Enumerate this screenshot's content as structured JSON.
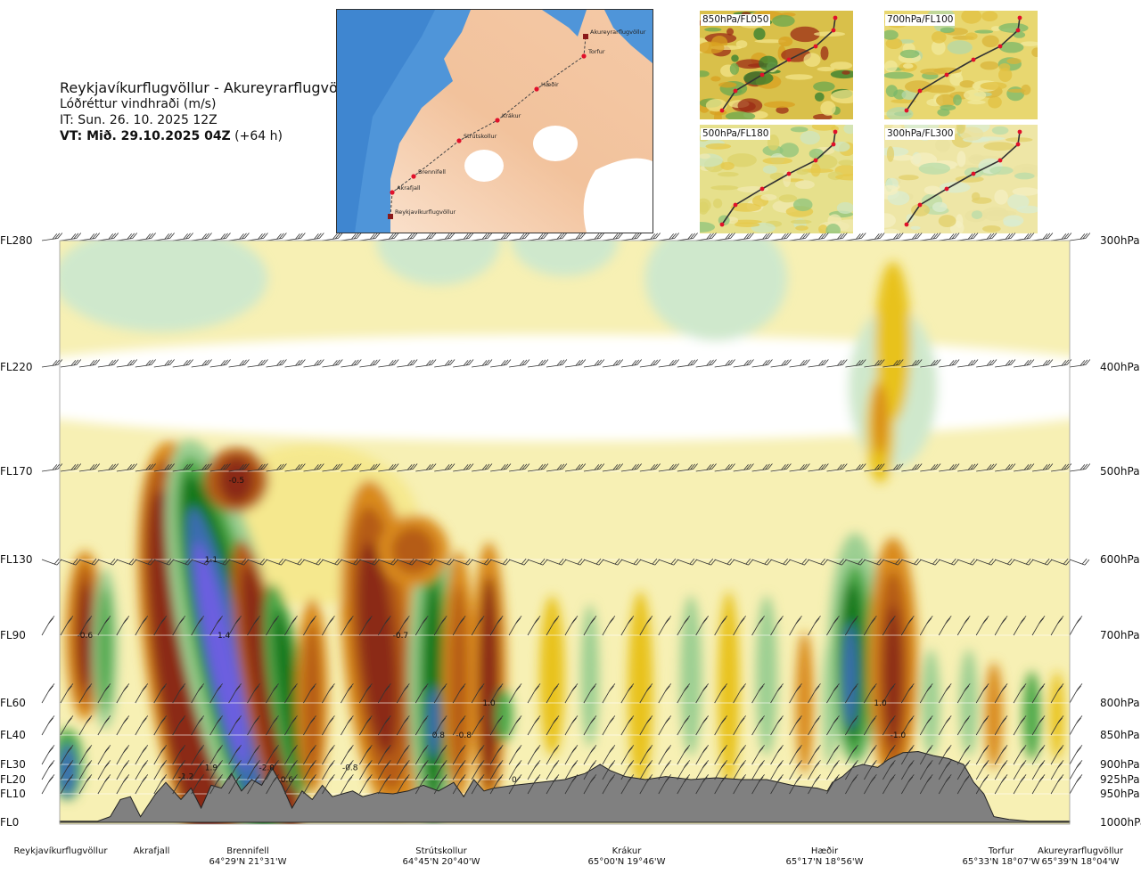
{
  "title": {
    "route": "Reykjavíkurflugvöllur - Akureyrarflugvöllur",
    "variable": "Lóðréttur vindhraði (m/s)",
    "it": "IT: Sun. 26. 10. 2025 12Z",
    "vt_bold": "VT: Mið. 29.10.2025 04Z",
    "vt_lead": " (+64 h)"
  },
  "map": {
    "waypoints": [
      "Reykjavíkurflugvöllur",
      "Akrafjall",
      "Brennifell",
      "Strútskollur",
      "Krákur",
      "Hæðir",
      "Torfur",
      "Akureyrarflugvöllur"
    ]
  },
  "mini_maps": [
    "850hPa/FL050",
    "700hPa/FL100",
    "500hPa/FL180",
    "300hPa/FL300"
  ],
  "levels": {
    "flight_levels": [
      "FL280",
      "FL220",
      "FL170",
      "FL130",
      "FL90",
      "FL60",
      "FL40",
      "FL30",
      "FL20",
      "FL10",
      "FL0"
    ],
    "pressure": [
      "300hPa",
      "400hPa",
      "500hPa",
      "600hPa",
      "700hPa",
      "800hPa",
      "850hPa",
      "900hPa",
      "925hPa",
      "950hPa",
      "1000hPa"
    ]
  },
  "locations": [
    {
      "name": "Reykjavíkurflugvöllur",
      "coord": ""
    },
    {
      "name": "Akrafjall",
      "coord": ""
    },
    {
      "name": "Brennifell",
      "coord": "64°29'N 21°31'W"
    },
    {
      "name": "Strútskollur",
      "coord": "64°45'N 20°40'W"
    },
    {
      "name": "Krákur",
      "coord": "65°00'N 19°46'W"
    },
    {
      "name": "Hæðir",
      "coord": "65°17'N 18°56'W"
    },
    {
      "name": "Torfur",
      "coord": "65°33'N 18°07'W"
    },
    {
      "name": "Akureyrarflugvöllur",
      "coord": "65°39'N 18°04'W"
    }
  ],
  "chart_data": {
    "type": "heatmap",
    "title": "Lóðréttur vindhraði (m/s)",
    "xlabel": "",
    "ylabel": "",
    "y_levels_hPa": [
      1000,
      950,
      925,
      900,
      850,
      800,
      700,
      600,
      500,
      400,
      300
    ],
    "x_waypoints": [
      "Reykjavíkurflugvöllur",
      "Akrafjall",
      "Brennifell",
      "Strútskollur",
      "Krákur",
      "Hæðir",
      "Torfur",
      "Akureyrarflugvöllur"
    ],
    "colors": {
      "strong_down": [
        "#8b2b12",
        "#b55c18",
        "#d98a1e",
        "#e8c21c",
        "#f5e88e"
      ],
      "weak": "#ffffff",
      "up": [
        "#cfe8cc",
        "#9ccf92",
        "#4ea84a",
        "#16781e",
        "#3a6db0",
        "#6c5fe0"
      ],
      "terrain": "#808080"
    },
    "annotations": [
      {
        "text": "-0.5",
        "x_km": 70,
        "hPa": 510
      },
      {
        "text": "1.1",
        "x_km": 60,
        "hPa": 600
      },
      {
        "text": "-0.6",
        "x_km": 10,
        "hPa": 700
      },
      {
        "text": "1.4",
        "x_km": 65,
        "hPa": 700
      },
      {
        "text": "-0.7",
        "x_km": 135,
        "hPa": 700
      },
      {
        "text": "1.0",
        "x_km": 170,
        "hPa": 800
      },
      {
        "text": "0.8",
        "x_km": 150,
        "hPa": 850
      },
      {
        "text": "-0.8",
        "x_km": 160,
        "hPa": 850
      },
      {
        "text": "1.9",
        "x_km": 60,
        "hPa": 905
      },
      {
        "text": "-1.2",
        "x_km": 50,
        "hPa": 920
      },
      {
        "text": "-2.0",
        "x_km": 82,
        "hPa": 905
      },
      {
        "text": "0.6",
        "x_km": 90,
        "hPa": 925
      },
      {
        "text": "-0.8",
        "x_km": 115,
        "hPa": 905
      },
      {
        "text": "0",
        "x_km": 180,
        "hPa": 925
      },
      {
        "text": "1.0",
        "x_km": 325,
        "hPa": 800
      },
      {
        "text": "-1.0",
        "x_km": 332,
        "hPa": 850
      }
    ]
  }
}
